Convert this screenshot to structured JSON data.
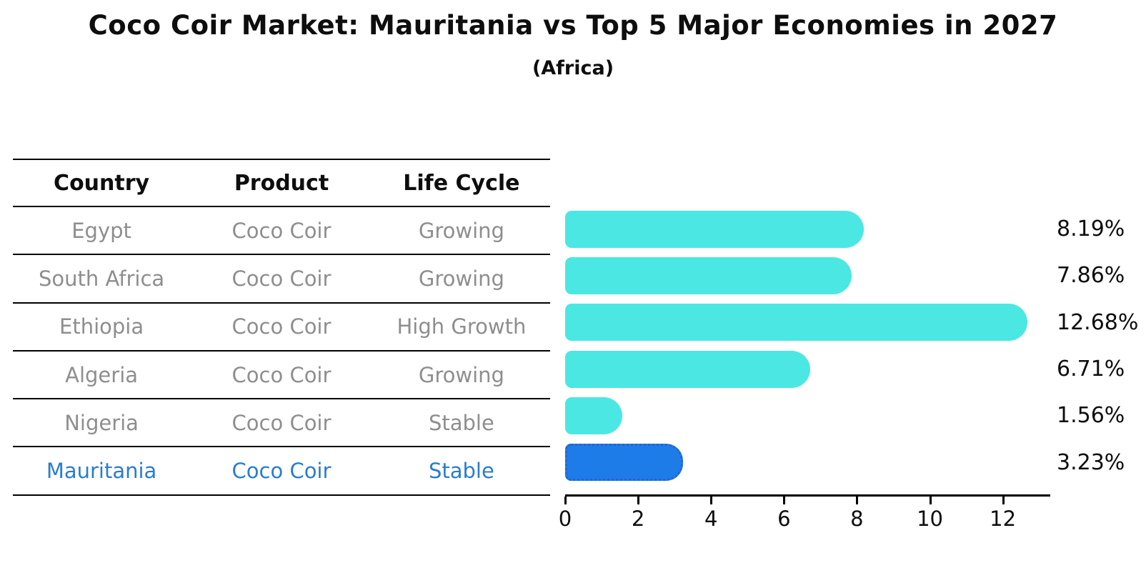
{
  "header": {
    "title": "Coco Coir Market: Mauritania vs Top 5 Major Economies in 2027",
    "subtitle": "(Africa)"
  },
  "table": {
    "columns": [
      "Country",
      "Product",
      "Life Cycle"
    ],
    "rows": [
      {
        "country": "Egypt",
        "product": "Coco Coir",
        "life_cycle": "Growing"
      },
      {
        "country": "South Africa",
        "product": "Coco Coir",
        "life_cycle": "Growing"
      },
      {
        "country": "Ethiopia",
        "product": "Coco Coir",
        "life_cycle": "High Growth"
      },
      {
        "country": "Algeria",
        "product": "Coco Coir",
        "life_cycle": "Growing"
      },
      {
        "country": "Nigeria",
        "product": "Coco Coir",
        "life_cycle": "Stable"
      },
      {
        "country": "Mauritania",
        "product": "Coco Coir",
        "life_cycle": "Stable"
      }
    ],
    "highlighted_row": "Mauritania"
  },
  "chart_data": {
    "type": "bar",
    "orientation": "horizontal",
    "title": "Coco Coir Market: Mauritania vs Top 5 Major Economies in 2027",
    "subtitle": "(Africa)",
    "categories": [
      "Egypt",
      "South Africa",
      "Ethiopia",
      "Algeria",
      "Nigeria",
      "Mauritania"
    ],
    "values": [
      8.19,
      7.86,
      12.68,
      6.71,
      1.56,
      3.23
    ],
    "value_labels": [
      "8.19%",
      "7.86%",
      "12.68%",
      "6.71%",
      "1.56%",
      "3.23%"
    ],
    "x_ticks": [
      0,
      2,
      4,
      6,
      8,
      10,
      12
    ],
    "xlim": [
      0,
      13.3
    ],
    "grid": false,
    "legend": false,
    "bar_color": "#4be7e3",
    "highlight_color": "#1e7ce8",
    "highlight_index": 5,
    "highlight_text_color": "#2a7dcb"
  }
}
